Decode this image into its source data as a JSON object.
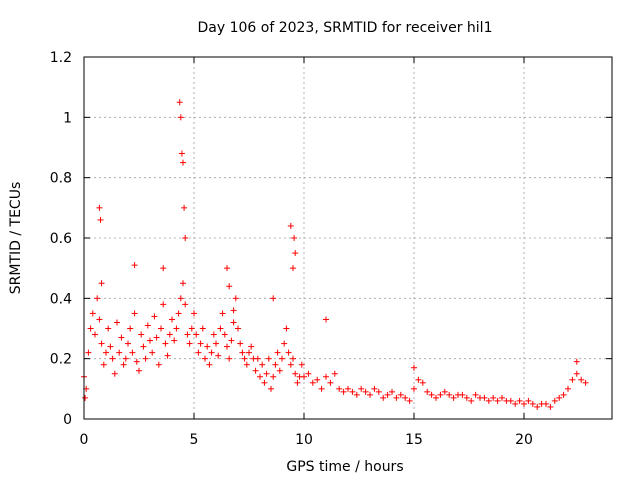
{
  "chart_data": {
    "type": "scatter",
    "title": "Day 106 of 2023, SRMTID for receiver hil1",
    "xlabel": "GPS time / hours",
    "ylabel": "SRMTID / TECUs",
    "xlim": [
      0,
      24
    ],
    "ylim": [
      0,
      1.2
    ],
    "xticks": [
      0,
      5,
      10,
      15,
      20
    ],
    "xtick_labels": [
      "0",
      "5",
      "10",
      "15",
      "20"
    ],
    "yticks": [
      0,
      0.2,
      0.4,
      0.6,
      0.8,
      1.0,
      1.2
    ],
    "ytick_labels": [
      "0",
      "0.2",
      "0.4",
      "0.6",
      "0.8",
      "1",
      "1.2"
    ],
    "grid": true,
    "marker": "+",
    "color": "#ff0000",
    "series": [
      {
        "name": "hil1",
        "x": [
          0.0,
          0.1,
          0.2,
          0.3,
          0.4,
          0.5,
          0.6,
          0.7,
          0.8,
          0.9,
          1.0,
          1.1,
          1.2,
          1.3,
          1.4,
          1.5,
          1.6,
          1.7,
          1.8,
          1.9,
          2.0,
          2.1,
          2.2,
          2.3,
          2.4,
          2.5,
          2.6,
          2.7,
          2.8,
          2.9,
          3.0,
          3.1,
          3.2,
          3.3,
          3.4,
          3.5,
          3.6,
          3.7,
          3.8,
          3.9,
          4.0,
          4.1,
          4.2,
          4.3,
          4.4,
          4.5,
          4.6,
          4.7,
          4.8,
          4.9,
          5.0,
          5.1,
          5.2,
          5.3,
          5.4,
          5.5,
          5.6,
          5.7,
          5.8,
          5.9,
          6.0,
          6.1,
          6.2,
          6.3,
          6.4,
          6.5,
          6.6,
          6.7,
          6.8,
          6.9,
          7.0,
          7.1,
          7.2,
          7.3,
          7.4,
          7.5,
          7.6,
          7.7,
          7.8,
          7.9,
          8.0,
          8.1,
          8.2,
          8.3,
          8.4,
          8.5,
          8.6,
          8.7,
          8.8,
          8.9,
          9.0,
          9.1,
          9.2,
          9.3,
          9.4,
          9.5,
          9.6,
          9.7,
          9.8,
          9.9,
          10.0,
          10.2,
          10.4,
          10.6,
          10.8,
          11.0,
          11.2,
          11.4,
          11.6,
          11.8,
          12.0,
          12.2,
          12.4,
          12.6,
          12.8,
          13.0,
          13.2,
          13.4,
          13.6,
          13.8,
          14.0,
          14.2,
          14.4,
          14.6,
          14.8,
          15.0,
          15.2,
          15.4,
          15.6,
          15.8,
          16.0,
          16.2,
          16.4,
          16.6,
          16.8,
          17.0,
          17.2,
          17.4,
          17.6,
          17.8,
          18.0,
          18.2,
          18.4,
          18.6,
          18.8,
          19.0,
          19.2,
          19.4,
          19.6,
          19.8,
          20.0,
          20.2,
          20.4,
          20.6,
          20.8,
          21.0,
          21.2,
          21.4,
          21.6,
          21.8,
          22.0,
          22.2,
          22.4,
          22.6,
          22.8,
          0.05,
          0.7,
          0.75,
          0.8,
          2.3,
          3.6,
          4.35,
          4.4,
          4.45,
          4.5,
          4.55,
          4.6,
          6.5,
          6.6,
          6.8,
          8.6,
          9.4,
          9.5,
          9.55,
          9.6,
          11.0,
          15.0,
          22.4
        ],
        "y": [
          0.14,
          0.1,
          0.22,
          0.3,
          0.35,
          0.28,
          0.4,
          0.33,
          0.25,
          0.18,
          0.22,
          0.3,
          0.24,
          0.2,
          0.15,
          0.32,
          0.22,
          0.27,
          0.18,
          0.2,
          0.25,
          0.3,
          0.22,
          0.35,
          0.19,
          0.16,
          0.28,
          0.24,
          0.2,
          0.31,
          0.26,
          0.22,
          0.34,
          0.27,
          0.18,
          0.3,
          0.38,
          0.25,
          0.21,
          0.28,
          0.33,
          0.26,
          0.3,
          0.35,
          0.4,
          0.45,
          0.38,
          0.28,
          0.25,
          0.3,
          0.35,
          0.28,
          0.22,
          0.25,
          0.3,
          0.2,
          0.24,
          0.18,
          0.22,
          0.28,
          0.25,
          0.21,
          0.3,
          0.35,
          0.28,
          0.24,
          0.2,
          0.26,
          0.32,
          0.4,
          0.3,
          0.25,
          0.22,
          0.2,
          0.18,
          0.22,
          0.24,
          0.2,
          0.16,
          0.2,
          0.14,
          0.18,
          0.12,
          0.15,
          0.2,
          0.1,
          0.14,
          0.18,
          0.22,
          0.16,
          0.2,
          0.25,
          0.3,
          0.22,
          0.18,
          0.2,
          0.15,
          0.12,
          0.14,
          0.18,
          0.14,
          0.15,
          0.12,
          0.13,
          0.1,
          0.14,
          0.12,
          0.15,
          0.1,
          0.09,
          0.1,
          0.09,
          0.08,
          0.1,
          0.09,
          0.08,
          0.1,
          0.09,
          0.07,
          0.08,
          0.09,
          0.07,
          0.08,
          0.07,
          0.06,
          0.1,
          0.13,
          0.12,
          0.09,
          0.08,
          0.07,
          0.08,
          0.09,
          0.08,
          0.07,
          0.08,
          0.08,
          0.07,
          0.06,
          0.08,
          0.07,
          0.07,
          0.06,
          0.07,
          0.06,
          0.07,
          0.06,
          0.06,
          0.05,
          0.06,
          0.05,
          0.06,
          0.05,
          0.04,
          0.05,
          0.05,
          0.04,
          0.06,
          0.07,
          0.08,
          0.1,
          0.13,
          0.15,
          0.13,
          0.12,
          0.07,
          0.7,
          0.66,
          0.45,
          0.51,
          0.5,
          1.05,
          1.0,
          0.88,
          0.85,
          0.7,
          0.6,
          0.5,
          0.44,
          0.36,
          0.4,
          0.64,
          0.5,
          0.6,
          0.55,
          0.33,
          0.17,
          0.19
        ]
      }
    ]
  }
}
